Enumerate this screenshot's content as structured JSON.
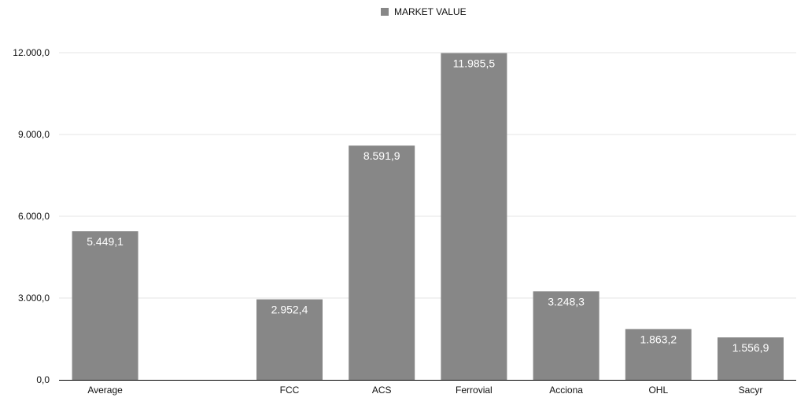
{
  "chart_data": {
    "type": "bar",
    "title": "",
    "xlabel": "",
    "ylabel": "",
    "legend": {
      "placement": "top-center",
      "entries": [
        "MARKET VALUE"
      ]
    },
    "categories": [
      "Average",
      "",
      "FCC",
      "ACS",
      "Ferrovial",
      "Acciona",
      "OHL",
      "Sacyr"
    ],
    "series": [
      {
        "name": "MARKET VALUE",
        "values": [
          5449.1,
          null,
          2952.4,
          8591.9,
          11985.5,
          3248.3,
          1863.2,
          1556.9
        ],
        "labels": [
          "5.449,1",
          "",
          "2.952,4",
          "8.591,9",
          "11.985,5",
          "3.248,3",
          "1.863,2",
          "1.556,9"
        ]
      }
    ],
    "ylim": [
      0,
      12000
    ],
    "yticks": [
      0,
      3000,
      6000,
      9000,
      12000
    ],
    "ytick_labels": [
      "0,0",
      "3.000,0",
      "6.000,0",
      "9.000,0",
      "12.000,0"
    ],
    "grid": true,
    "colors": {
      "bar": "#878787",
      "grid": "#e6e6e6",
      "axis": "#000000",
      "data_label": "#ffffff"
    }
  }
}
